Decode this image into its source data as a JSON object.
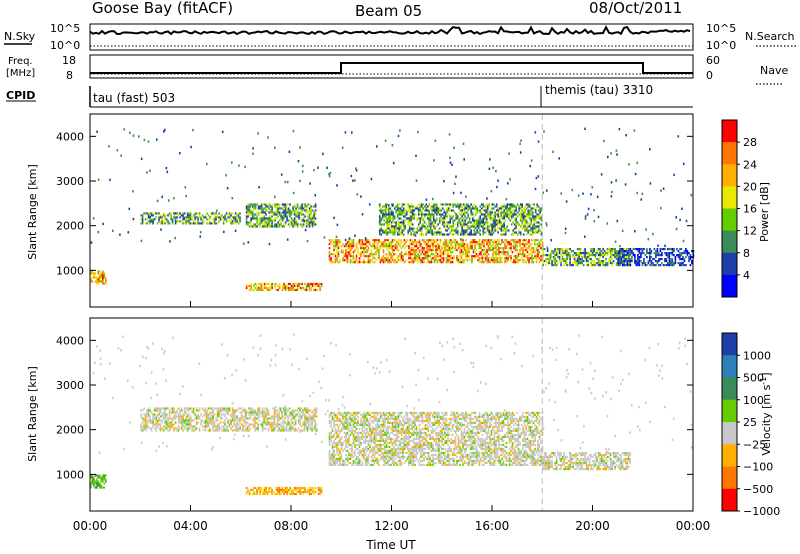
{
  "header": {
    "station": "Goose Bay (fitACF)",
    "beam": "Beam 05",
    "date": "08/Oct/2011"
  },
  "top_panels": {
    "nsky_label": "N.Sky",
    "nsky_ticks": [
      "10^5",
      "10^0"
    ],
    "nsearch_label": "N.Search",
    "nsearch_ticks": [
      "10^5",
      "10^0"
    ],
    "freq_label_1": "Freq.",
    "freq_label_2": "[MHz]",
    "freq_ticks": [
      "18",
      "8"
    ],
    "nave_label": "Nave",
    "nave_ticks": [
      "60",
      "0"
    ],
    "cpid_label": "CPID",
    "cpid_segments": [
      {
        "label": "tau (fast) 503",
        "start_hour": 0
      },
      {
        "label": "themis (tau) 3310",
        "start_hour": 18
      }
    ]
  },
  "chart_data": [
    {
      "type": "heatmap",
      "name": "power",
      "ylabel": "Slant Range [km]",
      "xlabel": "Time UT",
      "xlim": [
        0,
        24
      ],
      "ylim": [
        180,
        4500
      ],
      "yticks": [
        "4000",
        "3000",
        "2000",
        "1000"
      ],
      "colorbar": {
        "label": "Power [dB]",
        "ticks": [
          "28",
          "24",
          "20",
          "16",
          "12",
          "8",
          "4"
        ],
        "colors": [
          "#ff0000",
          "#ff7700",
          "#ffb000",
          "#e8e800",
          "#66cc00",
          "#3a8a5a",
          "#1e3fa8",
          "#0000ff"
        ]
      },
      "regions": [
        {
          "t0": 0.0,
          "t1": 0.6,
          "r0": 700,
          "r1": 1000,
          "level": "high"
        },
        {
          "t0": 2.0,
          "t1": 6.0,
          "r0": 2050,
          "r1": 2300,
          "level": "mid"
        },
        {
          "t0": 6.2,
          "t1": 9.0,
          "r0": 2000,
          "r1": 2500,
          "level": "mid"
        },
        {
          "t0": 6.2,
          "t1": 9.2,
          "r0": 560,
          "r1": 720,
          "level": "high"
        },
        {
          "t0": 9.5,
          "t1": 18.0,
          "r0": 1200,
          "r1": 1700,
          "level": "high"
        },
        {
          "t0": 11.5,
          "t1": 18.0,
          "r0": 1800,
          "r1": 2500,
          "level": "mid"
        },
        {
          "t0": 18.0,
          "t1": 21.5,
          "r0": 1100,
          "r1": 1500,
          "level": "mid"
        },
        {
          "t0": 21.0,
          "t1": 24.0,
          "r0": 1100,
          "r1": 1500,
          "level": "low"
        }
      ]
    },
    {
      "type": "heatmap",
      "name": "velocity",
      "ylabel": "Slant Range [km]",
      "xlabel": "Time UT",
      "xlim": [
        0,
        24
      ],
      "ylim": [
        180,
        4500
      ],
      "yticks": [
        "4000",
        "3000",
        "2000",
        "1000"
      ],
      "xticks": [
        "00:00",
        "04:00",
        "08:00",
        "12:00",
        "16:00",
        "20:00",
        "00:00"
      ],
      "colorbar": {
        "label": "Velocity [m s",
        "label_sup": "-1",
        "label_end": "]",
        "ticks": [
          "1000",
          "500",
          "100",
          "25",
          "−25",
          "−100",
          "−500",
          "−1000"
        ],
        "colors": [
          "#1e3fa8",
          "#2c7fb8",
          "#3a8a5a",
          "#66cc00",
          "#c8c8c8",
          "#ffb000",
          "#ff7700",
          "#ff0000"
        ]
      },
      "regions": [
        {
          "t0": 0.0,
          "t1": 0.6,
          "r0": 700,
          "r1": 1000,
          "level": "green"
        },
        {
          "t0": 2.0,
          "t1": 9.0,
          "r0": 2000,
          "r1": 2500,
          "level": "grey"
        },
        {
          "t0": 6.2,
          "t1": 9.2,
          "r0": 560,
          "r1": 720,
          "level": "orange"
        },
        {
          "t0": 9.5,
          "t1": 18.0,
          "r0": 1200,
          "r1": 2400,
          "level": "grey"
        },
        {
          "t0": 18.0,
          "t1": 21.5,
          "r0": 1100,
          "r1": 1500,
          "level": "grey"
        }
      ]
    }
  ]
}
